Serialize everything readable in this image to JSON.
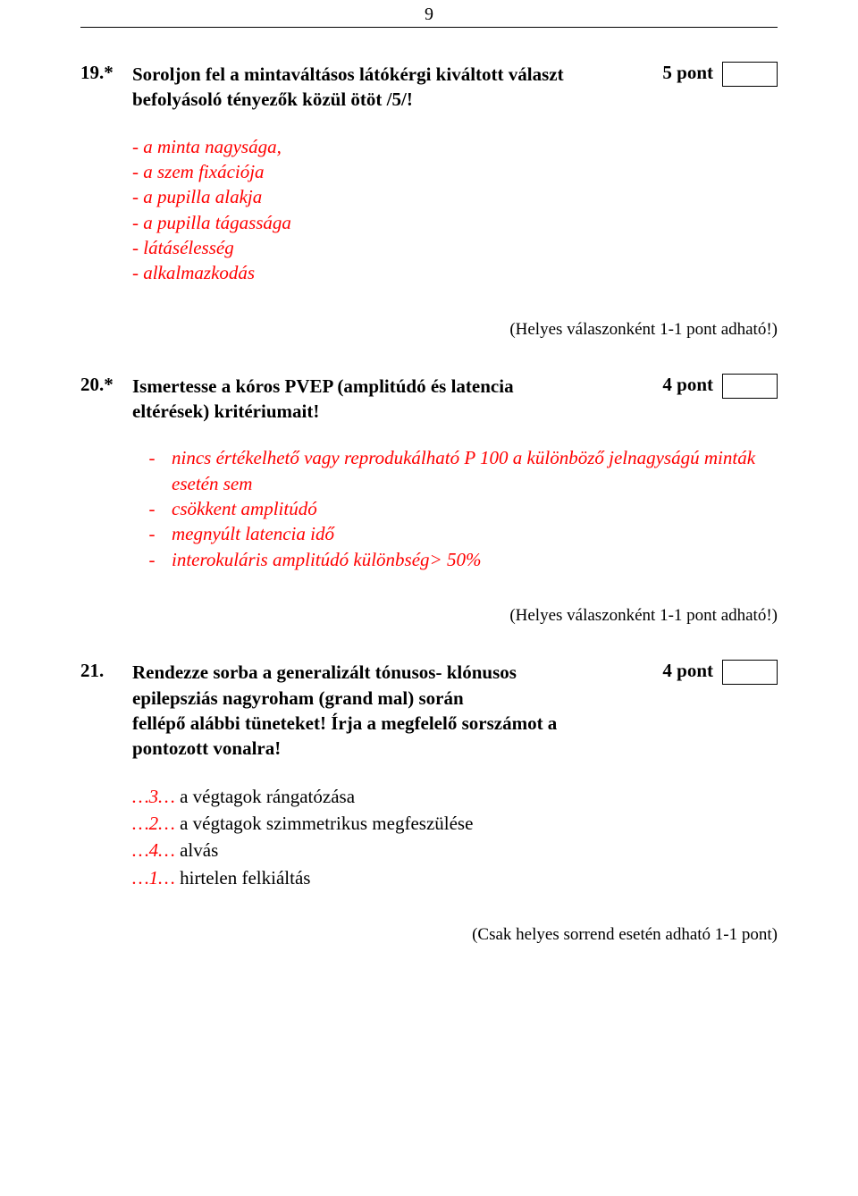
{
  "page_number": "9",
  "questions": [
    {
      "num": "19.*",
      "text_line1": "Soroljon fel a mintaváltásos látókérgi kiváltott választ",
      "text_line2": "befolyásoló tényezők közül ötöt /5/!",
      "points": "5 pont",
      "answers": [
        "- a minta nagysága,",
        "- a szem fixációja",
        "- a pupilla alakja",
        "- a pupilla tágassága",
        "- látásélesség",
        "- alkalmazkodás"
      ],
      "note": "(Helyes válaszonként 1-1 pont adható!)"
    },
    {
      "num": "20.*",
      "text_line1": "Ismertesse a kóros PVEP (amplitúdó és latencia",
      "text_line2": "eltérések) kritériumait!",
      "points": "4 pont",
      "bullets": [
        "nincs értékelhető vagy reprodukálható P 100 a különböző jelnagyságú minták esetén sem",
        "csökkent amplitúdó",
        "megnyúlt latencia idő",
        "interokuláris amplitúdó különbség> 50%"
      ],
      "note": "(Helyes válaszonként 1-1 pont adható!)"
    },
    {
      "num": "21.",
      "text_line1": "Rendezze sorba a generalizált tónusos- klónusos",
      "text_line2": "epilepsziás nagyroham (grand mal) során",
      "text_line3": "fellépő alábbi tüneteket! Írja a megfelelő sorszámot a",
      "text_line4": "pontozott vonalra!",
      "points": "4 pont",
      "sorted": [
        {
          "num": "…3…",
          "label": " a végtagok rángatózása"
        },
        {
          "num": "…2…",
          "label": " a végtagok szimmetrikus megfeszülése"
        },
        {
          "num": "…4…",
          "label": " alvás"
        },
        {
          "num": "…1…",
          "label": " hirtelen felkiáltás"
        }
      ],
      "note": "(Csak helyes sorrend esetén adható 1-1 pont)"
    }
  ]
}
